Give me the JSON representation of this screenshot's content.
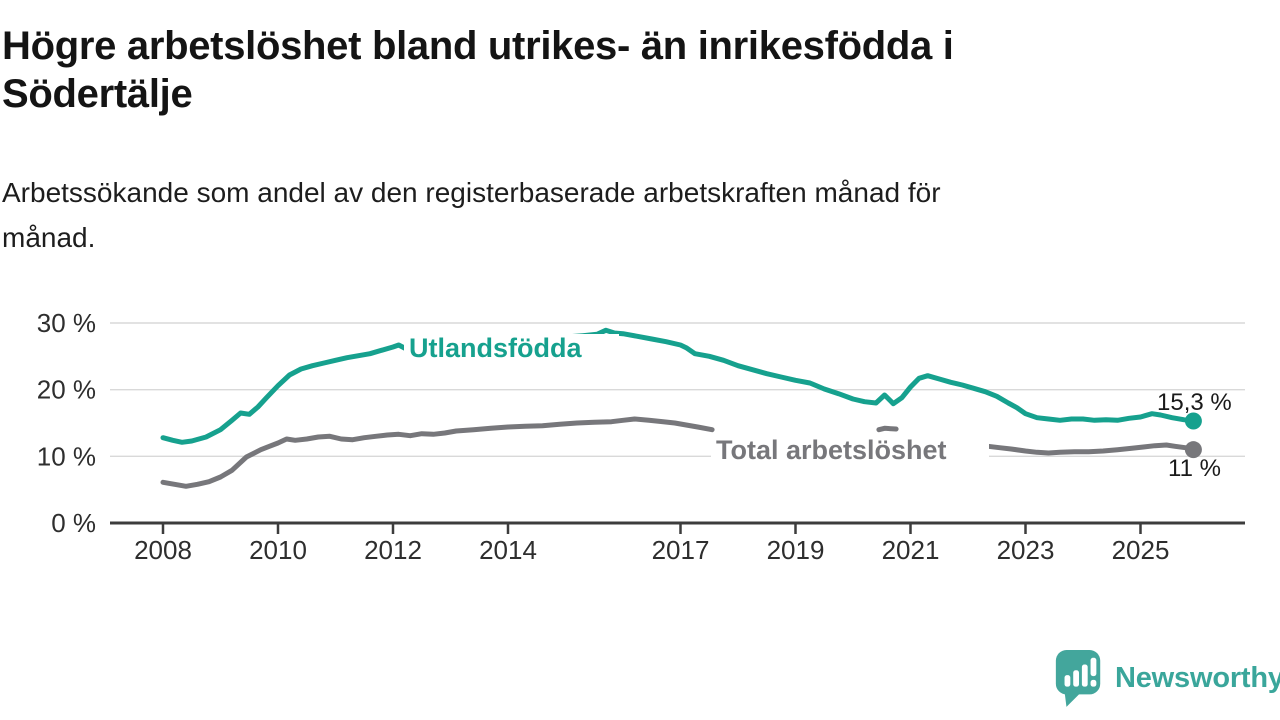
{
  "header": {
    "title_lines": [
      "Högre arbetslöshet bland utrikes- än inrikesfödda i",
      "Södertälje"
    ],
    "subtitle_lines": [
      "Arbetssökande som andel av den registerbaserade arbetskraften månad för",
      "månad."
    ]
  },
  "footer": {
    "brand": "Newsworthy",
    "logo_icon": "speech-bubble-bar-chart-icon"
  },
  "colors": {
    "utlandsfodda": "#16a18e",
    "total": "#77777b",
    "grid": "#d9d9d9",
    "axis": "#3c3c3c",
    "tick_text": "#2e2e2e",
    "value_label": "#1a1a1a",
    "brand_teal": "#43a69c"
  },
  "chart_data": {
    "type": "line",
    "title": "Högre arbetslöshet bland utrikes- än inrikesfödda i Södertälje",
    "subtitle": "Arbetssökande som andel av den registerbaserade arbetskraften månad för månad.",
    "xlabel": "",
    "ylabel": "",
    "grid": "horizontal",
    "legend_position": "inline-labels",
    "x_axis": {
      "tick_years": [
        2008,
        2010,
        2012,
        2014,
        2017,
        2019,
        2021,
        2023,
        2025
      ],
      "tick_labels": [
        "2008",
        "2010",
        "2012",
        "2014",
        "2017",
        "2019",
        "2021",
        "2023",
        "2025"
      ],
      "min": 2007.1,
      "max": 2026.1
    },
    "y_axis": {
      "tick_values": [
        0,
        10,
        20,
        30
      ],
      "tick_labels": [
        "0 %",
        "10 %",
        "20 %",
        "30 %"
      ],
      "min": 0,
      "max": 31.5
    },
    "series": [
      {
        "name": "Utlandsfödda",
        "color": "#16a18e",
        "end_label": "15,3 %",
        "end_value": 15.3,
        "segments": [
          [
            [
              2008.0,
              12.8
            ],
            [
              2008.17,
              12.4
            ],
            [
              2008.33,
              12.1
            ],
            [
              2008.5,
              12.3
            ],
            [
              2008.75,
              12.9
            ],
            [
              2009.0,
              14.0
            ],
            [
              2009.2,
              15.4
            ],
            [
              2009.35,
              16.5
            ],
            [
              2009.5,
              16.3
            ],
            [
              2009.65,
              17.4
            ],
            [
              2009.8,
              18.8
            ],
            [
              2010.0,
              20.6
            ],
            [
              2010.2,
              22.2
            ],
            [
              2010.4,
              23.1
            ],
            [
              2010.6,
              23.6
            ],
            [
              2010.8,
              24.0
            ],
            [
              2011.0,
              24.4
            ],
            [
              2011.2,
              24.8
            ],
            [
              2011.4,
              25.1
            ],
            [
              2011.6,
              25.4
            ],
            [
              2011.8,
              25.9
            ],
            [
              2012.0,
              26.4
            ],
            [
              2012.1,
              26.7
            ],
            [
              2012.3,
              25.8
            ],
            [
              2012.5,
              26.1
            ],
            [
              2012.7,
              26.0
            ],
            [
              2012.9,
              26.1
            ],
            [
              2013.2,
              26.4
            ],
            [
              2013.5,
              26.6
            ],
            [
              2013.8,
              26.9
            ],
            [
              2014.1,
              27.1
            ],
            [
              2014.4,
              27.3
            ],
            [
              2014.7,
              27.5
            ],
            [
              2015.0,
              27.9
            ],
            [
              2015.3,
              28.1
            ],
            [
              2015.55,
              28.3
            ],
            [
              2015.7,
              28.9
            ],
            [
              2015.85,
              28.5
            ],
            [
              2016.0,
              28.4
            ],
            [
              2016.25,
              28.0
            ],
            [
              2016.5,
              27.6
            ],
            [
              2016.75,
              27.2
            ],
            [
              2017.0,
              26.7
            ],
            [
              2017.1,
              26.3
            ],
            [
              2017.25,
              25.4
            ],
            [
              2017.5,
              25.0
            ],
            [
              2017.75,
              24.4
            ],
            [
              2018.0,
              23.6
            ],
            [
              2018.25,
              23.0
            ],
            [
              2018.5,
              22.4
            ],
            [
              2018.75,
              21.9
            ],
            [
              2019.0,
              21.4
            ],
            [
              2019.25,
              21.0
            ],
            [
              2019.5,
              20.1
            ],
            [
              2019.75,
              19.4
            ],
            [
              2020.0,
              18.6
            ],
            [
              2020.2,
              18.2
            ],
            [
              2020.4,
              18.0
            ],
            [
              2020.55,
              19.2
            ],
            [
              2020.7,
              17.9
            ],
            [
              2020.85,
              18.8
            ],
            [
              2021.0,
              20.4
            ],
            [
              2021.15,
              21.7
            ],
            [
              2021.3,
              22.1
            ],
            [
              2021.5,
              21.6
            ],
            [
              2021.7,
              21.1
            ],
            [
              2021.9,
              20.7
            ],
            [
              2022.1,
              20.2
            ],
            [
              2022.3,
              19.7
            ],
            [
              2022.5,
              19.0
            ],
            [
              2022.7,
              18.0
            ],
            [
              2022.85,
              17.3
            ],
            [
              2023.0,
              16.4
            ],
            [
              2023.2,
              15.8
            ],
            [
              2023.4,
              15.6
            ],
            [
              2023.6,
              15.4
            ],
            [
              2023.8,
              15.6
            ],
            [
              2024.0,
              15.6
            ],
            [
              2024.2,
              15.4
            ],
            [
              2024.4,
              15.5
            ],
            [
              2024.6,
              15.4
            ],
            [
              2024.8,
              15.7
            ],
            [
              2025.0,
              15.9
            ],
            [
              2025.2,
              16.4
            ],
            [
              2025.35,
              16.2
            ],
            [
              2025.55,
              15.8
            ],
            [
              2025.75,
              15.5
            ],
            [
              2025.92,
              15.3
            ]
          ]
        ]
      },
      {
        "name": "Total arbetslöshet",
        "color": "#77777b",
        "end_label": "11 %",
        "end_value": 11.0,
        "segments": [
          [
            [
              2008.0,
              6.1
            ],
            [
              2008.2,
              5.8
            ],
            [
              2008.4,
              5.5
            ],
            [
              2008.6,
              5.8
            ],
            [
              2008.8,
              6.2
            ],
            [
              2009.0,
              6.9
            ],
            [
              2009.2,
              7.9
            ],
            [
              2009.45,
              9.9
            ],
            [
              2009.7,
              11.0
            ],
            [
              2009.85,
              11.5
            ],
            [
              2010.0,
              12.0
            ],
            [
              2010.15,
              12.6
            ],
            [
              2010.3,
              12.4
            ],
            [
              2010.5,
              12.6
            ],
            [
              2010.7,
              12.9
            ],
            [
              2010.9,
              13.0
            ],
            [
              2011.1,
              12.6
            ],
            [
              2011.3,
              12.5
            ],
            [
              2011.5,
              12.8
            ],
            [
              2011.7,
              13.0
            ],
            [
              2011.9,
              13.2
            ],
            [
              2012.1,
              13.3
            ],
            [
              2012.3,
              13.1
            ],
            [
              2012.5,
              13.4
            ],
            [
              2012.7,
              13.3
            ],
            [
              2012.9,
              13.5
            ],
            [
              2013.1,
              13.8
            ],
            [
              2013.4,
              14.0
            ],
            [
              2013.7,
              14.2
            ],
            [
              2014.0,
              14.4
            ],
            [
              2014.3,
              14.5
            ],
            [
              2014.6,
              14.6
            ],
            [
              2014.9,
              14.8
            ],
            [
              2015.2,
              15.0
            ],
            [
              2015.5,
              15.1
            ],
            [
              2015.8,
              15.2
            ],
            [
              2016.0,
              15.4
            ],
            [
              2016.2,
              15.6
            ],
            [
              2016.45,
              15.4
            ],
            [
              2016.7,
              15.2
            ],
            [
              2016.9,
              15.0
            ],
            [
              2017.1,
              14.7
            ],
            [
              2017.3,
              14.4
            ],
            [
              2017.55,
              14.0
            ]
          ],
          [
            [
              2020.45,
              14.0
            ],
            [
              2020.55,
              14.2
            ],
            [
              2020.75,
              14.1
            ]
          ],
          [
            [
              2022.35,
              11.5
            ],
            [
              2022.55,
              11.3
            ],
            [
              2022.75,
              11.1
            ],
            [
              2023.0,
              10.8
            ],
            [
              2023.2,
              10.6
            ],
            [
              2023.4,
              10.5
            ],
            [
              2023.6,
              10.6
            ],
            [
              2023.85,
              10.7
            ],
            [
              2024.1,
              10.7
            ],
            [
              2024.35,
              10.8
            ],
            [
              2024.6,
              11.0
            ],
            [
              2024.85,
              11.2
            ],
            [
              2025.05,
              11.4
            ],
            [
              2025.25,
              11.6
            ],
            [
              2025.45,
              11.7
            ],
            [
              2025.6,
              11.5
            ],
            [
              2025.78,
              11.3
            ],
            [
              2025.92,
              11.0
            ]
          ]
        ]
      }
    ]
  }
}
